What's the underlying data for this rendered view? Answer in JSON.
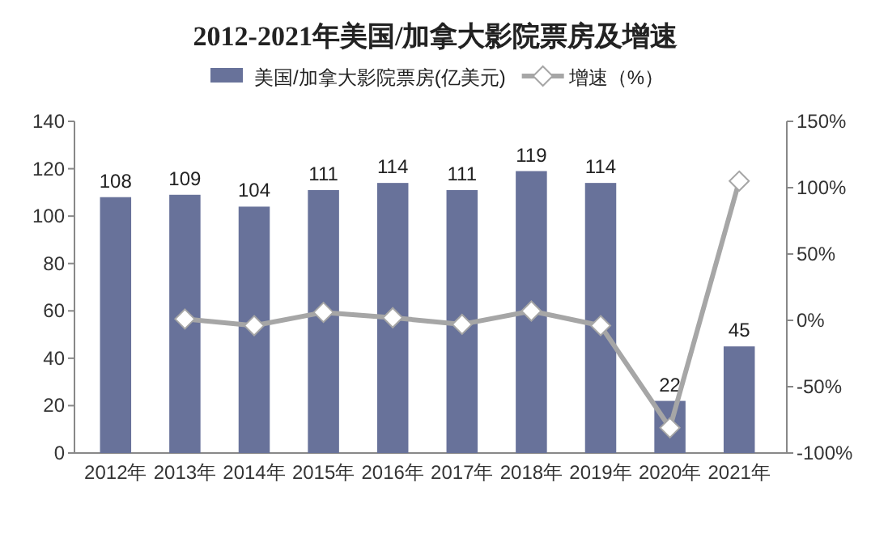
{
  "chart_data": {
    "type": "bar",
    "title": "2012-2021年美国/加拿大影院票房及增速",
    "categories": [
      "2012年",
      "2013年",
      "2014年",
      "2015年",
      "2016年",
      "2017年",
      "2018年",
      "2019年",
      "2020年",
      "2021年"
    ],
    "series": [
      {
        "name": "美国/加拿大影院票房(亿美元)",
        "color": "#68729a",
        "values": [
          108,
          109,
          104,
          111,
          114,
          111,
          119,
          114,
          22,
          45
        ],
        "value_labels": [
          "108",
          "109",
          "104",
          "111",
          "114",
          "111",
          "119",
          "114",
          "22",
          "45"
        ]
      },
      {
        "name": "增速（%）",
        "type": "line",
        "axis": "y2",
        "color": "#a6a6a6",
        "marker": "diamond",
        "values": [
          null,
          1,
          -4,
          6,
          2,
          -3,
          7,
          -4,
          -81,
          105
        ]
      }
    ],
    "ylim": [
      0,
      140
    ],
    "yticks": [
      0,
      20,
      40,
      60,
      80,
      100,
      120,
      140
    ],
    "y2lim": [
      -100,
      150
    ],
    "y2ticks": [
      {
        "value": -100,
        "label": "-100%"
      },
      {
        "value": -50,
        "label": "-50%"
      },
      {
        "value": 0,
        "label": "0%"
      },
      {
        "value": 50,
        "label": "50%"
      },
      {
        "value": 100,
        "label": "100%"
      },
      {
        "value": 150,
        "label": "150%"
      }
    ],
    "legend": "top",
    "grid": false
  }
}
